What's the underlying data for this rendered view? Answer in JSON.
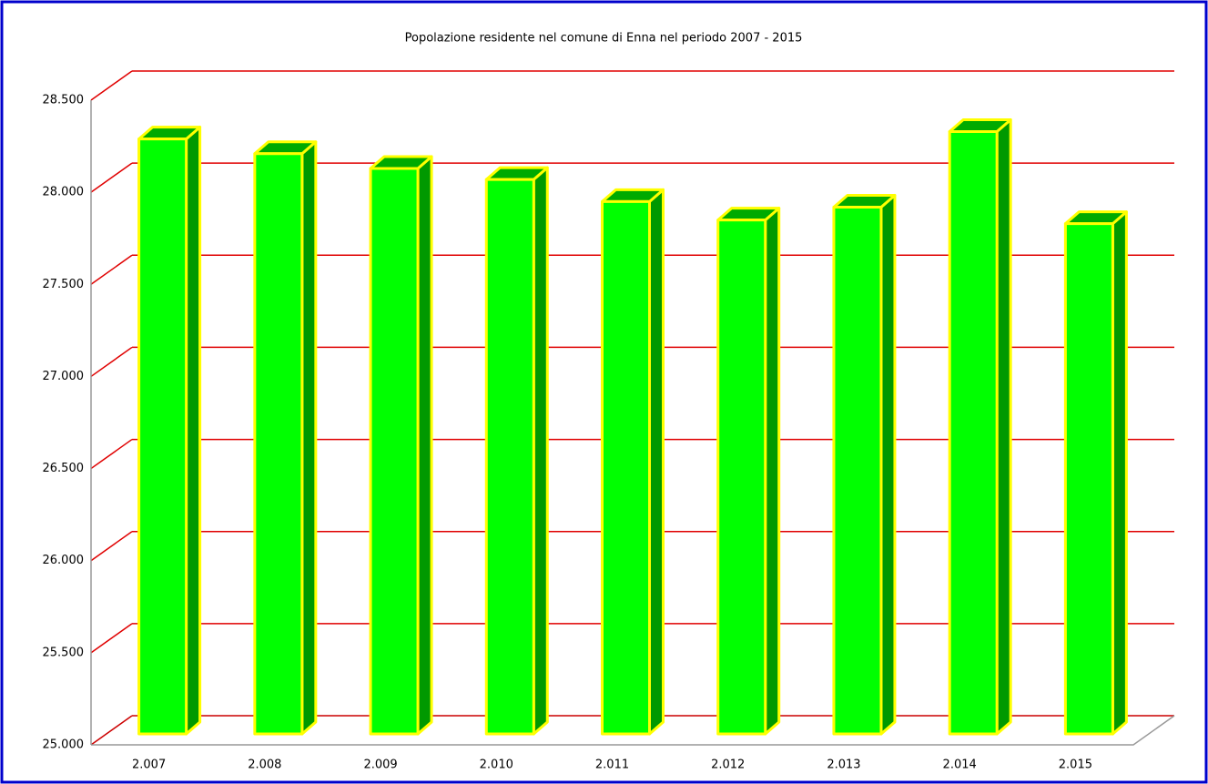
{
  "chart_data": {
    "type": "bar3d",
    "title": "Popolazione residente nel comune di Enna nel periodo 2007 - 2015",
    "categories": [
      "2.007",
      "2.008",
      "2.009",
      "2.010",
      "2.011",
      "2.012",
      "2.013",
      "2.014",
      "2.015"
    ],
    "values": [
      28230,
      28150,
      28070,
      28010,
      27890,
      27790,
      27860,
      28270,
      27770
    ],
    "color": "#00ff00",
    "ylim": [
      25000,
      28500
    ],
    "yticks": [
      {
        "value": 25000,
        "label": "25.000"
      },
      {
        "value": 25500,
        "label": "25.500"
      },
      {
        "value": 26000,
        "label": "26.000"
      },
      {
        "value": 26500,
        "label": "26.500"
      },
      {
        "value": 27000,
        "label": "27.000"
      },
      {
        "value": 27500,
        "label": "27.500"
      },
      {
        "value": 28000,
        "label": "28.000"
      },
      {
        "value": 28500,
        "label": "28.500"
      }
    ],
    "grid": true
  }
}
